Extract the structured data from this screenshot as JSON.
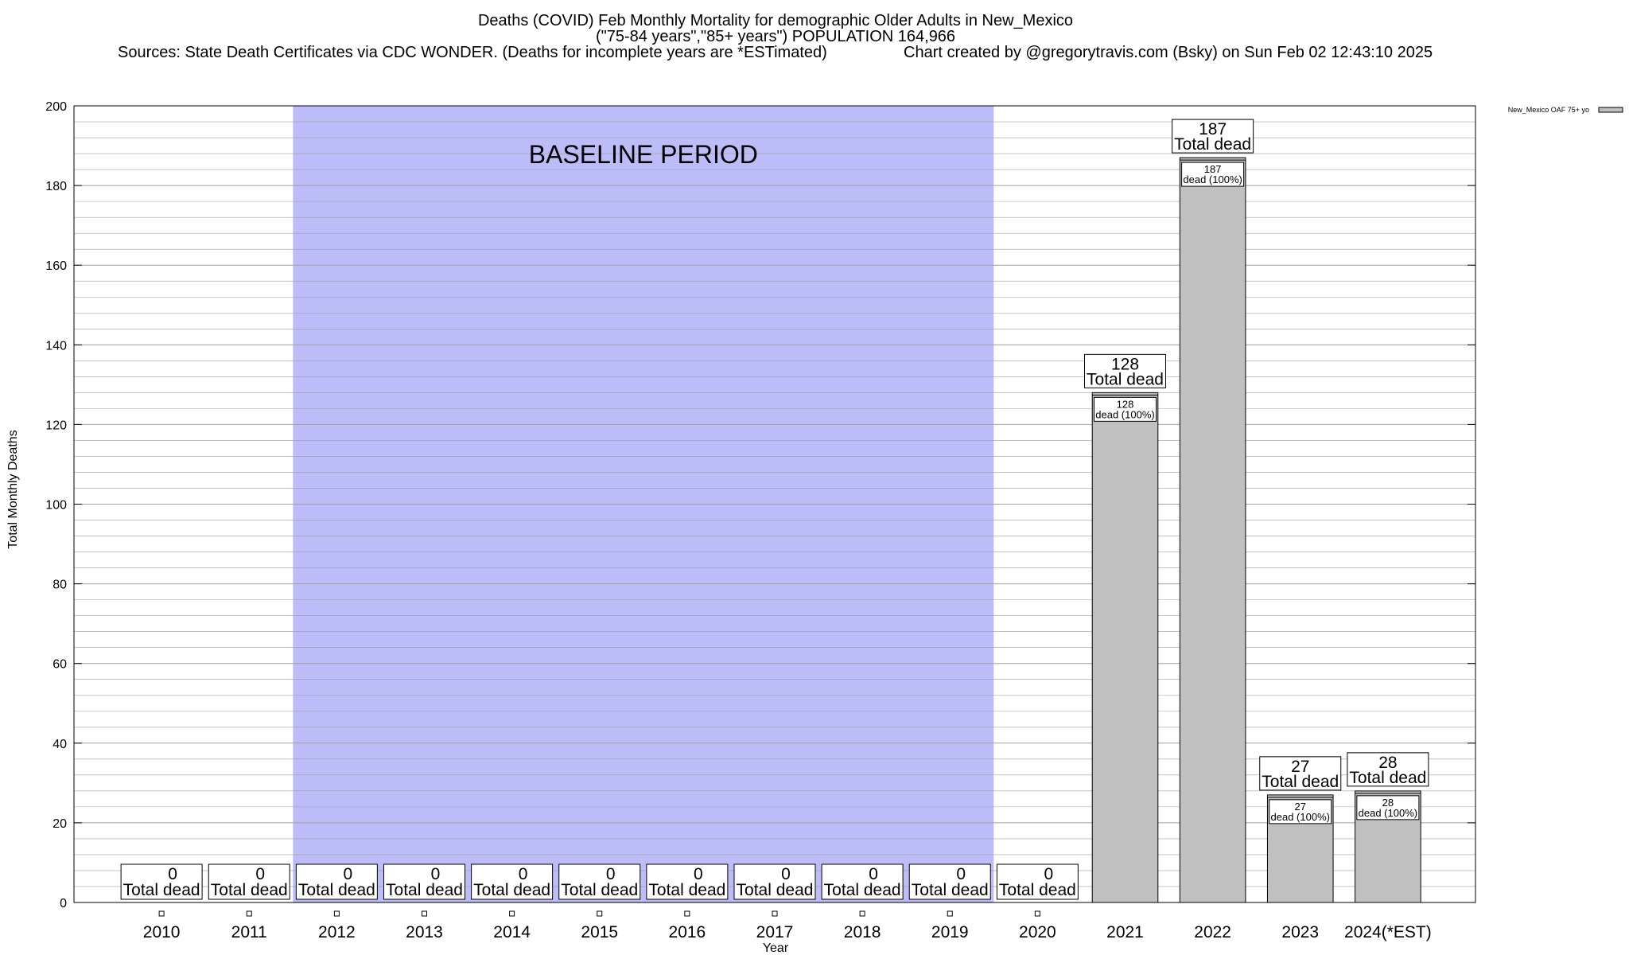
{
  "title": {
    "line1": "Deaths (COVID) Feb Monthly Mortality for demographic Older Adults in New_Mexico",
    "line2": "(\"75-84 years\",\"85+ years\") POPULATION 164,966",
    "sources": "Sources: State Death Certificates via CDC WONDER. (Deaths for incomplete years are *ESTimated)",
    "credit": "Chart created by @gregorytravis.com (Bsky) on Sun Feb 02 12:43:10 2025"
  },
  "chart_data": {
    "type": "bar",
    "categories": [
      "2010",
      "2011",
      "2012",
      "2013",
      "2014",
      "2015",
      "2016",
      "2017",
      "2018",
      "2019",
      "2020",
      "2021",
      "2022",
      "2023",
      "2024(*EST)"
    ],
    "series": [
      {
        "name": "New_Mexico OAF 75+ yo",
        "values": [
          0,
          0,
          0,
          0,
          0,
          0,
          0,
          0,
          0,
          0,
          0,
          128,
          187,
          27,
          28
        ]
      }
    ],
    "xlabel": "Year",
    "ylabel": "Total Monthly Deaths",
    "ylim": [
      0,
      200
    ],
    "yticks": [
      0,
      20,
      40,
      60,
      80,
      100,
      120,
      140,
      160,
      180,
      200
    ],
    "grid": true,
    "legend": "top-right",
    "baseline": {
      "label": "BASELINE PERIOD",
      "start": "2012",
      "end": "2019"
    },
    "bar_label_total": "Total dead",
    "bar_label_pct": "dead (100%)",
    "colors": {
      "bar": "#c0c0c0",
      "baseline": "#bcbcf8",
      "grid": "#a0a0a0"
    }
  }
}
